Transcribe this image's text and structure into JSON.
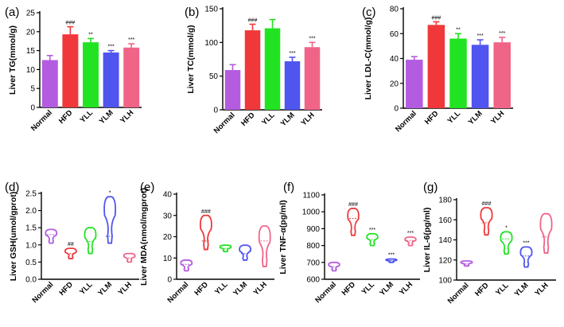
{
  "chart_data": [
    {
      "panel": "(a)",
      "type": "bar",
      "ylabel": "Liver TG(mmol/g)",
      "ylim": [
        0,
        25
      ],
      "yticks": [
        0,
        5,
        10,
        15,
        20,
        25
      ],
      "categories": [
        "Normal",
        "HFD",
        "YLL",
        "YLM",
        "YLH"
      ],
      "values": [
        12.5,
        19.3,
        17.2,
        14.5,
        15.8
      ],
      "errors": [
        1.2,
        2.0,
        1.0,
        0.5,
        1.0
      ],
      "annotations": [
        "",
        "###",
        "**",
        "***",
        "***"
      ]
    },
    {
      "panel": "(b)",
      "type": "bar",
      "ylabel": "Liver TC(mmol/g)",
      "ylim": [
        0,
        150
      ],
      "yticks": [
        0,
        50,
        100,
        150
      ],
      "categories": [
        "Normal",
        "HFD",
        "YLL",
        "YLM",
        "YLH"
      ],
      "values": [
        59,
        118,
        121,
        72,
        93
      ],
      "errors": [
        8,
        9,
        13,
        6,
        7
      ],
      "annotations": [
        "",
        "###",
        "",
        "***",
        "***"
      ]
    },
    {
      "panel": "(c)",
      "type": "bar",
      "ylabel": "Liver LDL-C(mmol/g)",
      "ylim": [
        0,
        80
      ],
      "yticks": [
        0,
        20,
        40,
        60,
        80
      ],
      "categories": [
        "Normal",
        "HFD",
        "YLL",
        "YLM",
        "YLH"
      ],
      "values": [
        39,
        67,
        56,
        51,
        53
      ],
      "errors": [
        2.5,
        2.5,
        4,
        4,
        4
      ],
      "annotations": [
        "",
        "###",
        "**",
        "***",
        "***"
      ]
    },
    {
      "panel": "(d)",
      "type": "violin",
      "ylabel": "Liver GSH(umol/gprot)",
      "ylim": [
        0,
        2.5
      ],
      "yticks": [
        0.0,
        0.5,
        1.0,
        1.5,
        2.0,
        2.5
      ],
      "categories": [
        "Normal",
        "HFD",
        "YLL",
        "YLM",
        "YLH"
      ],
      "min": [
        1.05,
        0.6,
        0.75,
        1.05,
        0.5
      ],
      "max": [
        1.45,
        0.9,
        1.5,
        2.4,
        0.75
      ],
      "median": [
        1.3,
        0.75,
        1.1,
        1.25,
        0.62
      ],
      "annotations": [
        "",
        "##",
        "",
        "*",
        ""
      ]
    },
    {
      "panel": "(e)",
      "type": "violin",
      "ylabel": "Liver MDA(nmol/mgprot)",
      "ylim": [
        0,
        40
      ],
      "yticks": [
        0,
        10,
        20,
        30,
        40
      ],
      "categories": [
        "Normal",
        "HFD",
        "YLL",
        "YLM",
        "YLH"
      ],
      "min": [
        4,
        14,
        13,
        9,
        6
      ],
      "max": [
        9,
        30,
        16,
        16,
        25
      ],
      "median": [
        7,
        18,
        14.5,
        12,
        18
      ],
      "annotations": [
        "",
        "###",
        "",
        "",
        ""
      ]
    },
    {
      "panel": "(f)",
      "type": "violin",
      "ylabel": "Liver TNF-α(pg/ml)",
      "ylim": [
        600,
        1100
      ],
      "yticks": [
        600,
        700,
        800,
        900,
        1000,
        1100
      ],
      "categories": [
        "Normal",
        "HFD",
        "YLL",
        "YLM",
        "YLH"
      ],
      "min": [
        650,
        860,
        800,
        700,
        800
      ],
      "max": [
        700,
        1020,
        870,
        720,
        850
      ],
      "median": [
        675,
        960,
        835,
        710,
        830
      ],
      "annotations": [
        "",
        "###",
        "***",
        "***",
        "***"
      ]
    },
    {
      "panel": "(g)",
      "type": "violin",
      "ylabel": "Liver IL-6(pg/ml)",
      "ylim": [
        100,
        180
      ],
      "yticks": [
        100,
        120,
        140,
        160,
        180
      ],
      "categories": [
        "Normal",
        "HFD",
        "YLL",
        "YLM",
        "YLH"
      ],
      "min": [
        114,
        145,
        126,
        113,
        127
      ],
      "max": [
        119,
        172,
        148,
        133,
        166
      ],
      "median": [
        116,
        157,
        141,
        124,
        143
      ],
      "annotations": [
        "",
        "###",
        "*",
        "***",
        ""
      ]
    }
  ],
  "colors": {
    "Normal": "#b45ce0",
    "HFD": "#f0383a",
    "YLL": "#22e322",
    "YLM": "#4f55ee",
    "YLH": "#f06488",
    "axis": "#000000"
  }
}
